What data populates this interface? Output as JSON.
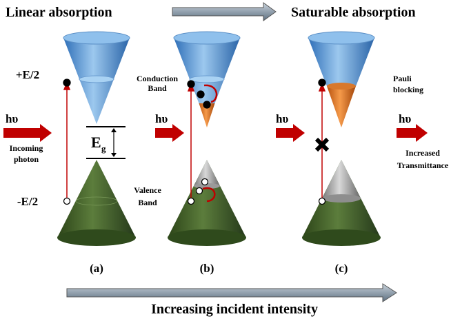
{
  "titles": {
    "left": "Linear absorption",
    "right": "Saturable absorption"
  },
  "energy_levels": {
    "upper": "+E/2",
    "lower": "-E/2"
  },
  "band_labels": {
    "conduction": [
      "Conduction",
      "Band"
    ],
    "valence": [
      "Valence",
      "Band"
    ]
  },
  "gap": {
    "symbol": "E",
    "subscript": "g"
  },
  "photons": [
    "hυ",
    "hυ",
    "hυ",
    "hυ"
  ],
  "incoming_photon": [
    "Incoming",
    "photon"
  ],
  "pauli_blocking": [
    "Pauli",
    "blocking"
  ],
  "transmittance": [
    "Increased",
    "Transmittance"
  ],
  "panels": [
    "(a)",
    "(b)",
    "(c)"
  ],
  "footer": "Increasing incident intensity"
}
